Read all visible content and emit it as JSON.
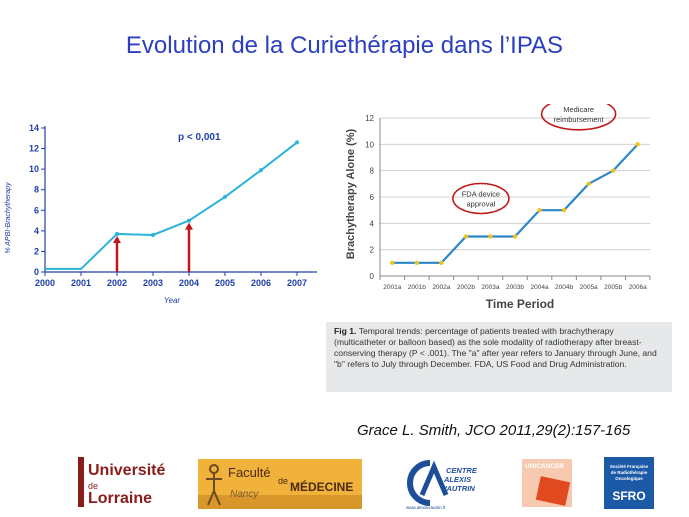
{
  "slide": {
    "title": "Evolution de la Curiethérapie dans l’IPAS",
    "citation": "Grace L. Smith, JCO 2011,29(2):157-165",
    "caption_label": "Fig 1.",
    "caption_text": "Temporal trends: percentage of patients treated with brachytherapy (multicatheter or balloon based) as the sole modality of radiotherapy after breast-conserving therapy (P < .001). The \"a\" after year refers to January through June, and \"b\" refers to July through December. FDA, US Food and Drug Administration."
  },
  "logos": {
    "universite_line1": "Université",
    "universite_de": "de",
    "universite_line2": "Lorraine",
    "medecine_faculte": "Faculté",
    "medecine_de": "de",
    "medecine_name": "MÉDECINE",
    "medecine_city": "Nancy",
    "cav_line1": "CENTRE",
    "cav_line2": "ALEXIS",
    "cav_line3": "VAUTRIN",
    "cav_url": "www.alexisvautrin.fr",
    "unicancer": "UNICANCER",
    "sfro_line1": "Société Française",
    "sfro_line2": "de Radiothérapie",
    "sfro_line3": "Oncologique",
    "sfro_name": "SFRO"
  },
  "colors": {
    "title": "#2b3fbf",
    "left_line": "#2ab4d8",
    "left_axis": "#1f3fa8",
    "arrow": "#c0161c",
    "right_line": "#2a86c8",
    "right_marker": "#f2c31c",
    "ellipse": "#c01818"
  },
  "chart_data": [
    {
      "type": "line",
      "title": "",
      "annotation": "p < 0,001",
      "xlabel": "Year",
      "ylabel": "% APBI-Brachytherapy",
      "x": [
        2000,
        2001,
        2002,
        2003,
        2004,
        2005,
        2006,
        2007
      ],
      "x_ticks": [
        "2000",
        "2001",
        "2002",
        "2003",
        "2004",
        "2005",
        "2006",
        "2007"
      ],
      "series": [
        {
          "values": [
            0.3,
            0.3,
            3.7,
            3.6,
            5.0,
            7.3,
            9.9,
            12.6
          ]
        }
      ],
      "arrows_at": [
        2002,
        2004
      ],
      "ylim": [
        0,
        14
      ],
      "y_ticks": [
        0,
        2,
        4,
        6,
        8,
        10,
        12,
        14
      ],
      "grid": false
    },
    {
      "type": "line",
      "title": "",
      "xlabel": "Time Period",
      "ylabel": "Brachytherapy Alone (%)",
      "categories": [
        "2001a",
        "2001b",
        "2002a",
        "2002b",
        "2003a",
        "2003b",
        "2004a",
        "2004b",
        "2005a",
        "2005b",
        "2006a"
      ],
      "series": [
        {
          "values": [
            1,
            1,
            1,
            3,
            3,
            3,
            5,
            5,
            7,
            8,
            10
          ]
        }
      ],
      "annotations": [
        {
          "text_line1": "FDA device",
          "text_line2": "approval",
          "at_category": "2002b"
        },
        {
          "text_line1": "Medicare",
          "text_line2": "reimbursement",
          "at_category": "2005a"
        }
      ],
      "ylim": [
        0,
        12
      ],
      "y_ticks": [
        0,
        2,
        4,
        6,
        8,
        10,
        12
      ],
      "grid": true
    }
  ]
}
